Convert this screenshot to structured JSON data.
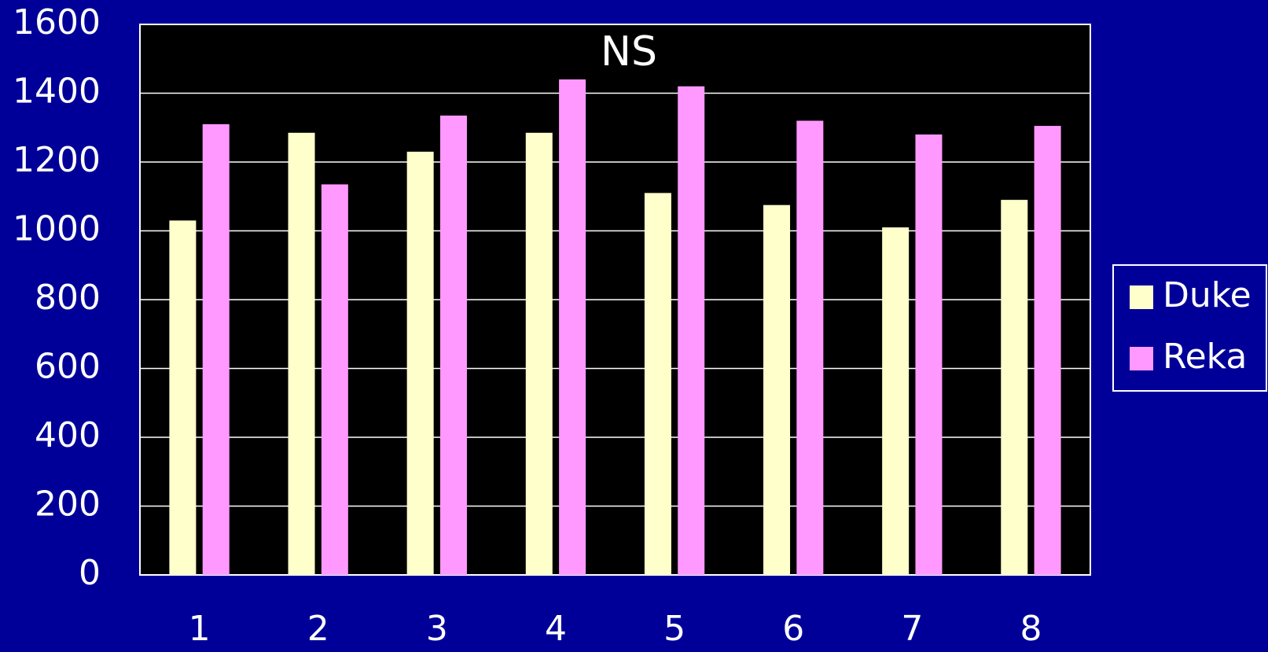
{
  "chart_data": {
    "type": "bar",
    "title": "NS",
    "categories": [
      "1",
      "2",
      "3",
      "4",
      "5",
      "6",
      "7",
      "8"
    ],
    "series": [
      {
        "name": "Duke",
        "color": "#ffffcc",
        "values": [
          1030,
          1285,
          1230,
          1285,
          1110,
          1075,
          1010,
          1090
        ]
      },
      {
        "name": "Reka",
        "color": "#ff99ff",
        "values": [
          1310,
          1135,
          1335,
          1440,
          1420,
          1320,
          1280,
          1305
        ]
      }
    ],
    "ylim": [
      0,
      1600
    ],
    "yticks": [
      0,
      200,
      400,
      600,
      800,
      1000,
      1200,
      1400,
      1600
    ],
    "grid": true,
    "legend": "right"
  }
}
